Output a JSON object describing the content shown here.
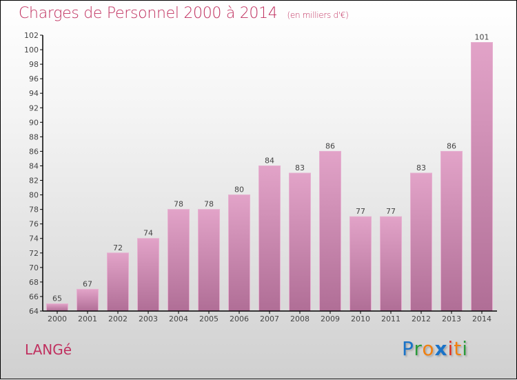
{
  "chart_data": {
    "type": "bar",
    "title": "Charges de Personnel 2000 à 2014",
    "subtitle": "(en milliers d'€)",
    "categories": [
      "2000",
      "2001",
      "2002",
      "2003",
      "2004",
      "2005",
      "2006",
      "2007",
      "2008",
      "2009",
      "2010",
      "2011",
      "2012",
      "2013",
      "2014"
    ],
    "values": [
      65,
      67,
      72,
      74,
      78,
      78,
      80,
      84,
      83,
      86,
      77,
      77,
      83,
      86,
      101
    ],
    "ylim": [
      64,
      102
    ],
    "ytick_step": 2,
    "xlabel": "",
    "ylabel": "",
    "grid": false,
    "bar_color_top": "#e2a3c8",
    "bar_color_bottom": "#b06e96"
  },
  "footer": {
    "town": "LANGé",
    "logo": "Proxiti"
  }
}
